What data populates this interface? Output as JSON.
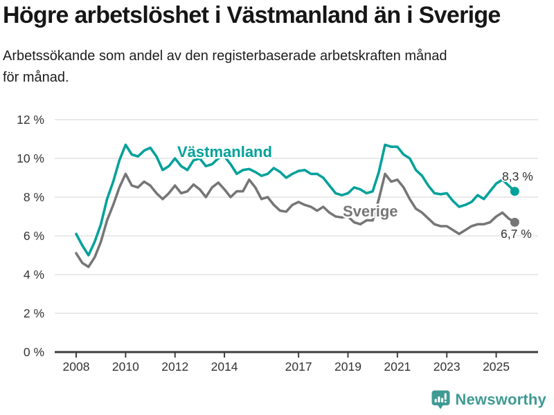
{
  "header": {
    "title": "Högre arbetslöshet i Västmanland än i Sverige",
    "subtitle_line1": "Arbetssökande som andel av den registerbaserade arbetskraften månad",
    "subtitle_line2": "för månad."
  },
  "footer": {
    "brand": "Newsworthy"
  },
  "colors": {
    "vastmanland_teal": "#00a19a",
    "sverige_gray": "#767676",
    "gridline": "#e2e2e2",
    "axis": "#3d3d3d",
    "axis_text": "#333333",
    "brand_teal": "#3f9a94"
  },
  "chart_data": {
    "type": "line",
    "title": "Högre arbetslöshet i Västmanland än i Sverige",
    "subtitle": "Arbetssökande som andel av den registerbaserade arbetskraften månad för månad.",
    "xlabel": "",
    "ylabel": "",
    "grid": "horizontal",
    "legend_position": "inline-labels-on-lines",
    "x_range": [
      2007.1,
      2026.7
    ],
    "y_range": [
      0,
      12
    ],
    "x_ticks": [
      2008,
      2010,
      2012,
      2014,
      2017,
      2019,
      2021,
      2023,
      2025
    ],
    "x_tick_labels": [
      "2008",
      "2010",
      "2012",
      "2014",
      "2017",
      "2019",
      "2021",
      "2023",
      "2025"
    ],
    "y_ticks": [
      0,
      2,
      4,
      6,
      8,
      10,
      12
    ],
    "y_tick_labels": [
      "0 %",
      "2 %",
      "4 %",
      "6 %",
      "8 %",
      "10 %",
      "12 %"
    ],
    "x": [
      2008.0,
      2008.25,
      2008.5,
      2008.75,
      2009.0,
      2009.25,
      2009.5,
      2009.75,
      2010.0,
      2010.25,
      2010.5,
      2010.75,
      2011.0,
      2011.25,
      2011.5,
      2011.75,
      2012.0,
      2012.25,
      2012.5,
      2012.75,
      2013.0,
      2013.25,
      2013.5,
      2013.75,
      2014.0,
      2014.25,
      2014.5,
      2014.75,
      2015.0,
      2015.25,
      2015.5,
      2015.75,
      2016.0,
      2016.25,
      2016.5,
      2016.75,
      2017.0,
      2017.25,
      2017.5,
      2017.75,
      2018.0,
      2018.25,
      2018.5,
      2018.75,
      2019.0,
      2019.25,
      2019.5,
      2019.75,
      2020.0,
      2020.25,
      2020.5,
      2020.75,
      2021.0,
      2021.25,
      2021.5,
      2021.75,
      2022.0,
      2022.25,
      2022.5,
      2022.75,
      2023.0,
      2023.25,
      2023.5,
      2023.75,
      2024.0,
      2024.25,
      2024.5,
      2024.75,
      2025.0,
      2025.25,
      2025.5,
      2025.75
    ],
    "series": [
      {
        "name": "Västmanland",
        "color": "#00a19a",
        "end_label": "8,3 %",
        "end_value": 8.3,
        "values": [
          6.1,
          5.5,
          5.0,
          5.7,
          6.6,
          7.9,
          8.8,
          9.9,
          10.7,
          10.2,
          10.1,
          10.4,
          10.55,
          10.1,
          9.4,
          9.6,
          10.0,
          9.6,
          9.4,
          9.9,
          10.0,
          9.6,
          9.7,
          10.0,
          10.1,
          9.7,
          9.2,
          9.4,
          9.45,
          9.3,
          9.1,
          9.2,
          9.5,
          9.3,
          9.0,
          9.2,
          9.35,
          9.4,
          9.2,
          9.2,
          9.0,
          8.6,
          8.2,
          8.1,
          8.2,
          8.5,
          8.4,
          8.2,
          8.3,
          9.3,
          10.7,
          10.6,
          10.6,
          10.2,
          10.0,
          9.4,
          9.1,
          8.6,
          8.2,
          8.15,
          8.2,
          7.8,
          7.5,
          7.6,
          7.75,
          8.1,
          7.9,
          8.3,
          8.7,
          8.9,
          8.6,
          8.3
        ]
      },
      {
        "name": "Sverige",
        "color": "#767676",
        "end_label": "6,7 %",
        "end_value": 6.7,
        "values": [
          5.1,
          4.6,
          4.4,
          4.9,
          5.7,
          6.8,
          7.6,
          8.5,
          9.2,
          8.6,
          8.5,
          8.8,
          8.6,
          8.2,
          7.9,
          8.2,
          8.6,
          8.2,
          8.3,
          8.65,
          8.4,
          8.0,
          8.5,
          8.75,
          8.4,
          8.0,
          8.3,
          8.3,
          8.9,
          8.5,
          7.9,
          8.0,
          7.6,
          7.3,
          7.25,
          7.6,
          7.75,
          7.6,
          7.5,
          7.3,
          7.5,
          7.2,
          7.0,
          6.95,
          7.0,
          6.7,
          6.6,
          6.8,
          6.8,
          7.9,
          9.2,
          8.8,
          8.9,
          8.5,
          7.9,
          7.4,
          7.2,
          6.9,
          6.6,
          6.5,
          6.5,
          6.3,
          6.1,
          6.3,
          6.5,
          6.6,
          6.6,
          6.7,
          7.0,
          7.2,
          6.9,
          6.7
        ]
      }
    ]
  }
}
